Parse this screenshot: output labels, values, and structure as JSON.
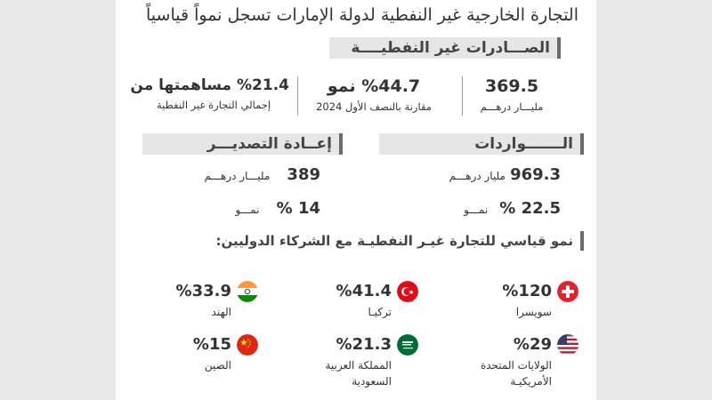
{
  "title": "التجارة الخارجية غير النفطية لدولة الإمارات تسجل نمواً قياسياً",
  "exports_header": "الصـــادرات غير النفطيــــة",
  "exports": {
    "value": "369.5",
    "value_unit": "مليـــار درهـــم",
    "growth": "%44.7 نمو",
    "growth_note": "مقارنة بالنصف الأول 2024",
    "share": "%21.4 مساهمتها من",
    "share_note": "إجمالي التجارة غير النفطية"
  },
  "imports_header": "الـــــــواردات",
  "imports": {
    "value": "969.3",
    "value_unit": "مليار درهـــم",
    "growth_value": "22.5 %",
    "growth_label": "نمـــو"
  },
  "reexports_header": "إعــادة التصديـــر",
  "reexports": {
    "value": "389",
    "value_unit": "مليـــار درهـــم",
    "growth_value": "14 %",
    "growth_label": "نمـــو"
  },
  "partners_header": "نمو قياسي للتجارة غيـر النفطيـة مع الشركاء الدوليين:",
  "partners": [
    {
      "pct": "%120",
      "name": "سويسرا",
      "flag_icon": "switzerland-flag-icon"
    },
    {
      "pct": "%41.4",
      "name": "تركيـا",
      "flag_icon": "turkey-flag-icon"
    },
    {
      "pct": "%33.9",
      "name": "الهند",
      "flag_icon": "india-flag-icon"
    },
    {
      "pct": "%29",
      "name": "الولايات المتحدة الأمريكيـة",
      "flag_icon": "usa-flag-icon"
    },
    {
      "pct": "%21.3",
      "name": "المملكة العربية السعودية",
      "flag_icon": "saudi-flag-icon"
    },
    {
      "pct": "%15",
      "name": "الصين",
      "flag_icon": "china-flag-icon"
    }
  ],
  "colors": {
    "side_gray": "#e9e9e9",
    "header_bar": "#e6e6e6",
    "accent_bar": "#6b6b6b",
    "text": "#333333"
  }
}
